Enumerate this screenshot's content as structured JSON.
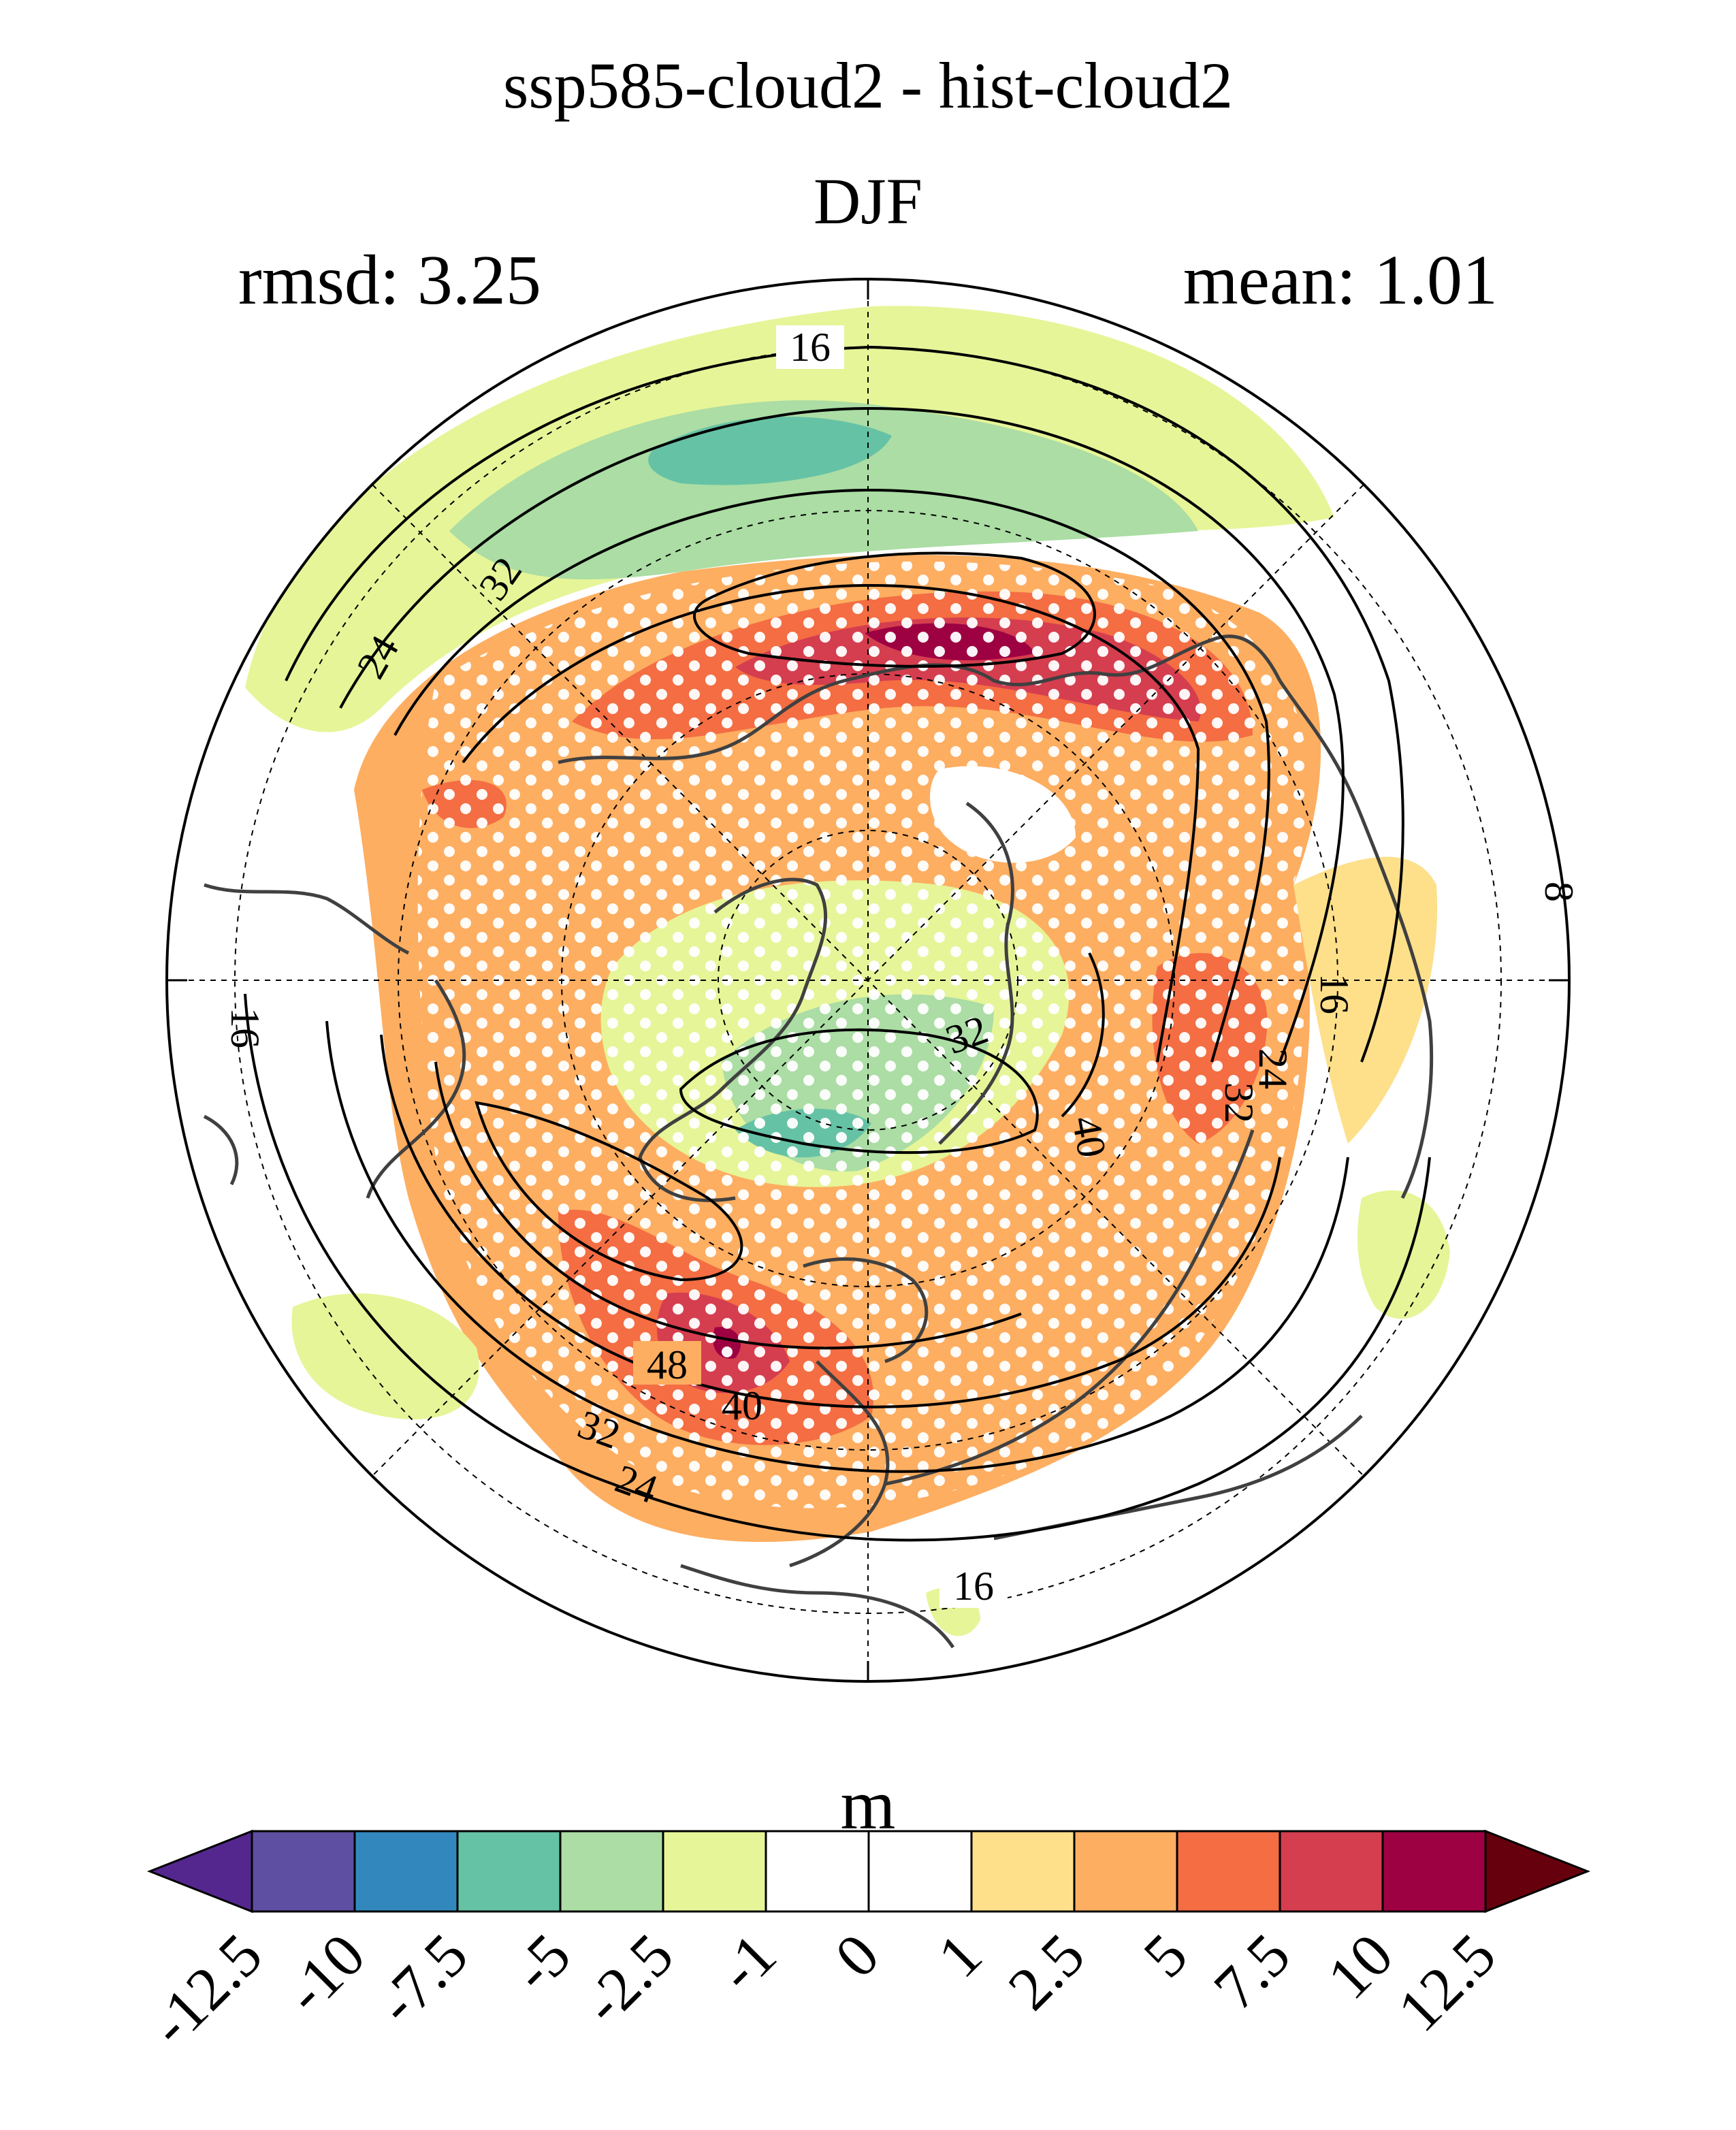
{
  "title": "ssp585-cloud2 - hist-cloud2",
  "season": "DJF",
  "stats": {
    "rmsd_label": "rmsd: 3.25",
    "mean_label": "mean: 1.01"
  },
  "colorbar": {
    "unit": "m",
    "ticks": [
      "-12.5",
      "-10",
      "-7.5",
      "-5",
      "-2.5",
      "-1",
      "0",
      "1",
      "2.5",
      "5",
      "7.5",
      "10",
      "12.5"
    ],
    "colors": [
      "#5e4fa2",
      "#3288bd",
      "#66c2a5",
      "#abdda4",
      "#e6f598",
      "#ffffff",
      "#ffffff",
      "#fee08b",
      "#fdae61",
      "#f46d43",
      "#d53e4f",
      "#9e0142"
    ],
    "under_color": "#54278f",
    "over_color": "#67000d"
  },
  "contour_labels": [
    "16",
    "24",
    "32",
    "16",
    "8",
    "16",
    "24",
    "32",
    "40",
    "32",
    "48",
    "40",
    "32",
    "24",
    "16",
    "16"
  ],
  "projection": "north-polar-stereographic",
  "stippling": "white-dots"
}
